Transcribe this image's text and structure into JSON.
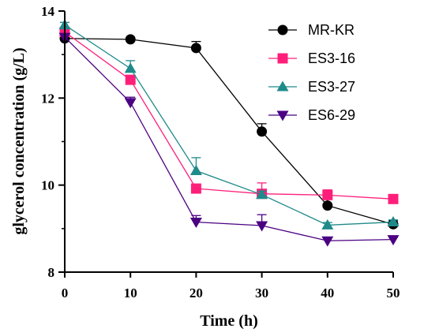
{
  "chart_data": {
    "type": "line",
    "xlabel": "Time (h)",
    "ylabel": "glycerol concentration (g/L)",
    "x": [
      0,
      10,
      20,
      30,
      40,
      50
    ],
    "xlim": [
      0,
      50
    ],
    "ylim": [
      8,
      14
    ],
    "xticks": [
      "0",
      "10",
      "20",
      "30",
      "40",
      "50"
    ],
    "yticks": [
      "8",
      "10",
      "12",
      "14"
    ],
    "legend_position": "top-right",
    "grid": false,
    "series": [
      {
        "name": "MR-KR",
        "marker": "circle",
        "color": "#000000",
        "values": [
          13.37,
          13.35,
          13.15,
          11.23,
          9.53,
          9.1
        ],
        "errors": [
          0.08,
          0.03,
          0.15,
          0.18,
          0.3,
          0.08
        ]
      },
      {
        "name": "ES3-16",
        "marker": "square",
        "color": "#ff1f7a",
        "values": [
          13.52,
          12.42,
          9.92,
          9.8,
          9.77,
          9.68
        ],
        "errors": [
          0.08,
          0.05,
          0.08,
          0.25,
          0.12,
          0.05
        ]
      },
      {
        "name": "ES3-27",
        "marker": "triangle-up",
        "color": "#1f8a8a",
        "values": [
          13.68,
          12.68,
          10.33,
          9.78,
          9.08,
          9.15
        ],
        "errors": [
          0.06,
          0.18,
          0.3,
          0.08,
          0.06,
          0.05
        ]
      },
      {
        "name": "ES6-29",
        "marker": "triangle-down",
        "color": "#4b0082",
        "values": [
          13.4,
          11.9,
          9.15,
          9.07,
          8.72,
          8.75
        ],
        "errors": [
          0.08,
          0.12,
          0.15,
          0.25,
          0.08,
          0.05
        ]
      }
    ]
  }
}
